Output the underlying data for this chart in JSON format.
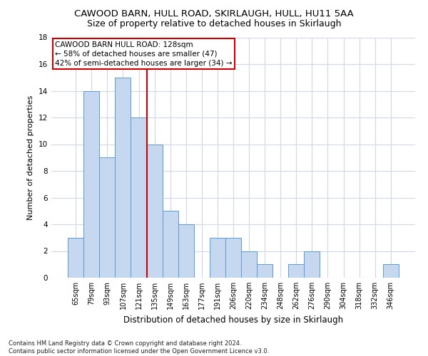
{
  "title1": "CAWOOD BARN, HULL ROAD, SKIRLAUGH, HULL, HU11 5AA",
  "title2": "Size of property relative to detached houses in Skirlaugh",
  "xlabel": "Distribution of detached houses by size in Skirlaugh",
  "ylabel": "Number of detached properties",
  "categories": [
    "65sqm",
    "79sqm",
    "93sqm",
    "107sqm",
    "121sqm",
    "135sqm",
    "149sqm",
    "163sqm",
    "177sqm",
    "191sqm",
    "206sqm",
    "220sqm",
    "234sqm",
    "248sqm",
    "262sqm",
    "276sqm",
    "290sqm",
    "304sqm",
    "318sqm",
    "332sqm",
    "346sqm"
  ],
  "values": [
    3,
    14,
    9,
    15,
    12,
    10,
    5,
    4,
    0,
    3,
    3,
    2,
    1,
    0,
    1,
    2,
    0,
    0,
    0,
    0,
    1
  ],
  "bar_color": "#c5d8f0",
  "bar_edge_color": "#5b9bd5",
  "vline_x": 4,
  "vline_color": "#cc0000",
  "annotation_box_text": "CAWOOD BARN HULL ROAD: 128sqm\n← 58% of detached houses are smaller (47)\n42% of semi-detached houses are larger (34) →",
  "ylim": [
    0,
    18
  ],
  "yticks": [
    0,
    2,
    4,
    6,
    8,
    10,
    12,
    14,
    16,
    18
  ],
  "footer": "Contains HM Land Registry data © Crown copyright and database right 2024.\nContains public sector information licensed under the Open Government Licence v3.0.",
  "bg_color": "#ffffff",
  "grid_color": "#d0d8e8",
  "title1_fontsize": 9.5,
  "title2_fontsize": 9,
  "xlabel_fontsize": 8.5,
  "ylabel_fontsize": 8,
  "annot_fontsize": 7.5,
  "tick_fontsize": 7,
  "ytick_fontsize": 7.5,
  "footer_fontsize": 6
}
